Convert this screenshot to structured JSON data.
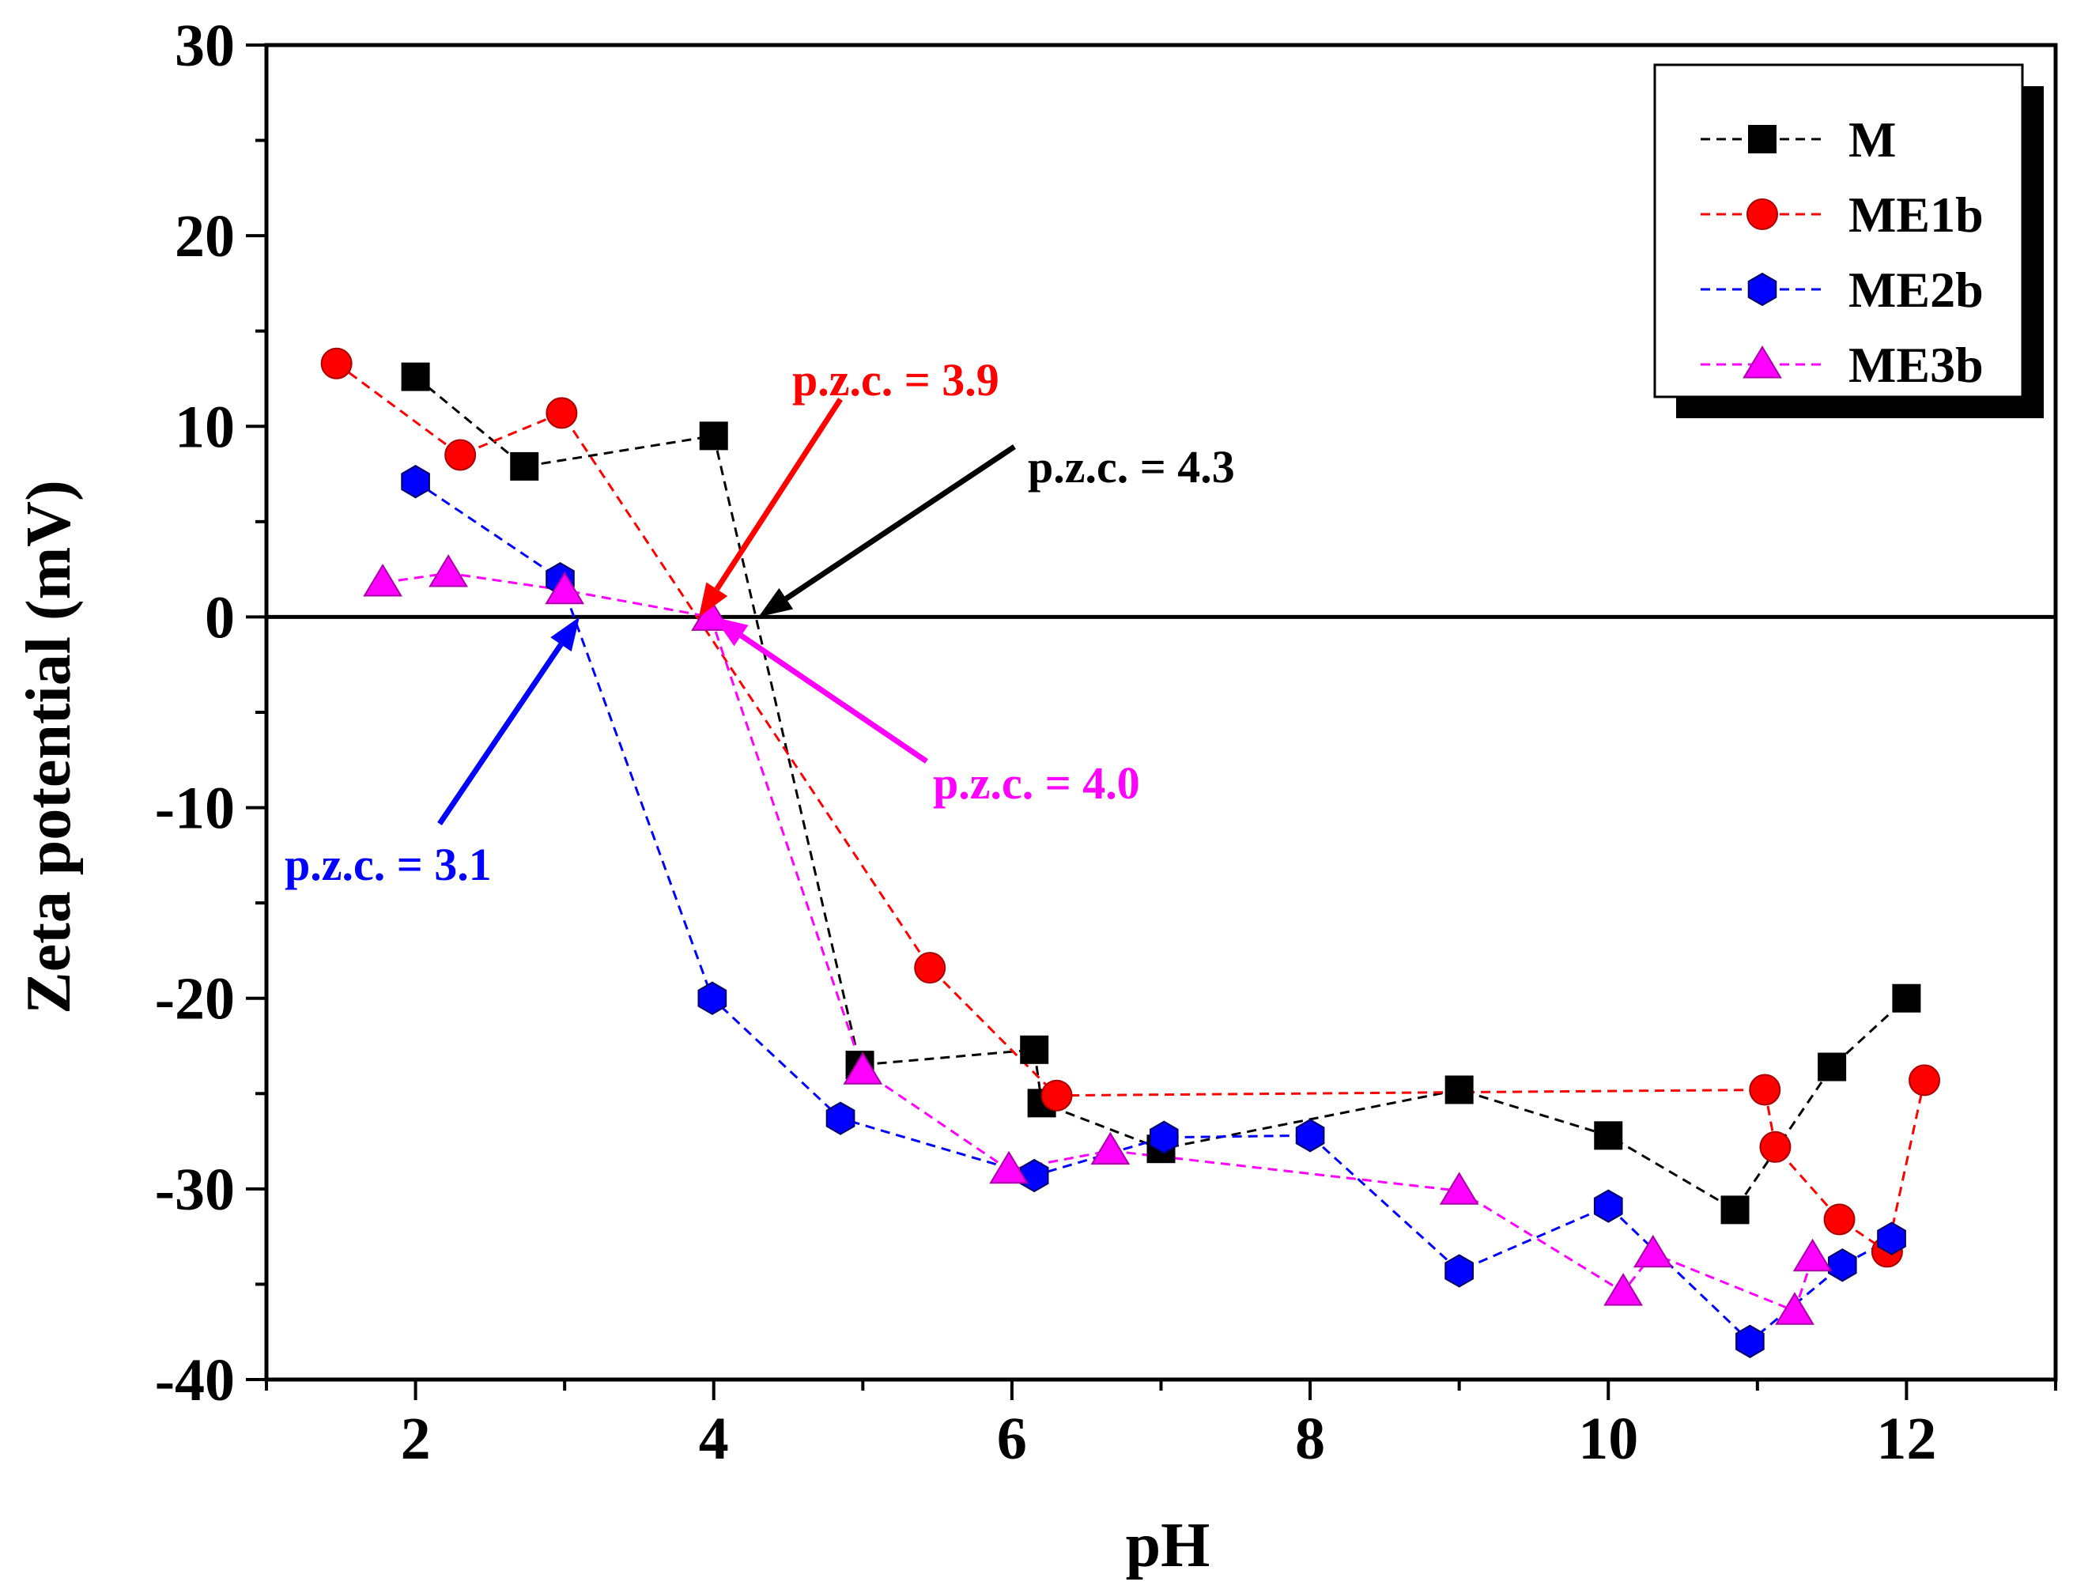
{
  "chart_data": {
    "type": "line",
    "title": "",
    "xlabel": "pH",
    "ylabel": "Zeta potential (mV)",
    "xlim": [
      1,
      13
    ],
    "ylim": [
      -40,
      30
    ],
    "xticks": [
      2,
      4,
      6,
      8,
      10,
      12
    ],
    "yticks": [
      -40,
      -30,
      -20,
      -10,
      0,
      10,
      20,
      30
    ],
    "xtick_labels": [
      "2",
      "4",
      "6",
      "8",
      "10",
      "12"
    ],
    "ytick_labels": [
      "-40",
      "-30",
      "-20",
      "-10",
      "0",
      "10",
      "20",
      "30"
    ],
    "zero_line": true,
    "grid": false,
    "legend_position": "top-right",
    "series": [
      {
        "name": "M",
        "color": "#000000",
        "marker": "square",
        "points": [
          [
            2.0,
            12.6
          ],
          [
            2.73,
            7.9
          ],
          [
            4.0,
            9.5
          ],
          [
            4.98,
            -23.5
          ],
          [
            6.15,
            -22.7
          ],
          [
            6.2,
            -25.5
          ],
          [
            7.0,
            -27.9
          ],
          [
            9.0,
            -24.8
          ],
          [
            10.0,
            -27.2
          ],
          [
            10.85,
            -31.1
          ],
          [
            11.5,
            -23.6
          ],
          [
            12.0,
            -20.0
          ]
        ]
      },
      {
        "name": "ME1b",
        "color": "#ff0000",
        "marker": "circle",
        "points": [
          [
            1.47,
            13.3
          ],
          [
            2.3,
            8.5
          ],
          [
            2.98,
            10.7
          ],
          [
            5.45,
            -18.4
          ],
          [
            6.3,
            -25.1
          ],
          [
            11.05,
            -24.8
          ],
          [
            11.12,
            -27.8
          ],
          [
            11.55,
            -31.6
          ],
          [
            11.87,
            -33.3
          ],
          [
            12.12,
            -24.3
          ]
        ]
      },
      {
        "name": "ME2b",
        "color": "#0000ff",
        "marker": "hexagon",
        "points": [
          [
            2.0,
            7.1
          ],
          [
            2.97,
            2.0
          ],
          [
            3.99,
            -20.0
          ],
          [
            4.85,
            -26.3
          ],
          [
            6.15,
            -29.3
          ],
          [
            7.02,
            -27.3
          ],
          [
            8.0,
            -27.2
          ],
          [
            9.0,
            -34.3
          ],
          [
            10.0,
            -30.9
          ],
          [
            10.95,
            -38.0
          ],
          [
            11.57,
            -34.0
          ],
          [
            11.9,
            -32.6
          ]
        ]
      },
      {
        "name": "ME3b",
        "color": "#ff00ff",
        "marker": "triangle",
        "points": [
          [
            1.78,
            1.8
          ],
          [
            2.22,
            2.3
          ],
          [
            3.0,
            1.4
          ],
          [
            3.98,
            0.0
          ],
          [
            5.0,
            -23.8
          ],
          [
            5.98,
            -29.0
          ],
          [
            6.66,
            -28.0
          ],
          [
            9.0,
            -30.1
          ],
          [
            10.1,
            -35.4
          ],
          [
            10.3,
            -33.4
          ],
          [
            11.25,
            -36.4
          ],
          [
            11.37,
            -33.6
          ]
        ]
      }
    ],
    "annotations": [
      {
        "text": "p.z.c. = 3.9",
        "color": "#ff0000",
        "target": [
          3.9,
          0
        ],
        "anchor": "top-right"
      },
      {
        "text": "p.z.c. = 4.3",
        "color": "#000000",
        "target": [
          4.3,
          0
        ],
        "anchor": "upper-right"
      },
      {
        "text": "p.z.c. = 4.0",
        "color": "#ff00ff",
        "target": [
          4.0,
          0
        ],
        "anchor": "lower-right"
      },
      {
        "text": "p.z.c. = 3.1",
        "color": "#0000ff",
        "target": [
          3.1,
          0
        ],
        "anchor": "lower-left"
      }
    ]
  }
}
